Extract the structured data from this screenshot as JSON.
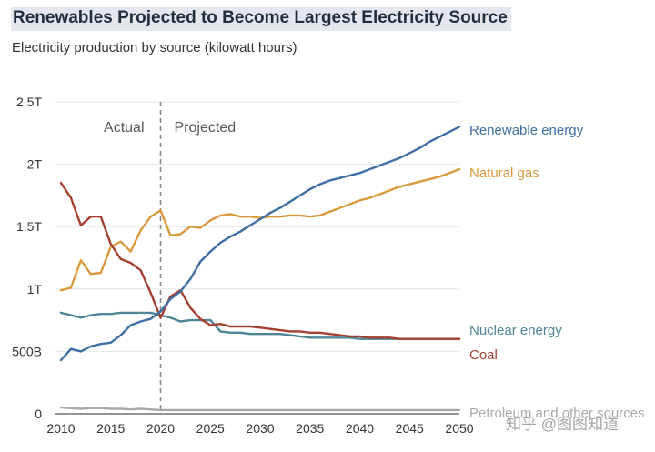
{
  "header": {
    "title": "Renewables Projected to Become Largest Electricity Source",
    "subtitle": "Electricity production by source (kilowatt hours)"
  },
  "watermark": "知乎 @图图知道",
  "chart_data": {
    "type": "line",
    "title": "Renewables Projected to Become Largest Electricity Source",
    "subtitle": "Electricity production by source (kilowatt hours)",
    "xlabel": "",
    "ylabel": "",
    "xlim": [
      2010,
      2050
    ],
    "ylim": [
      0,
      2.5
    ],
    "x_ticks": [
      2010,
      2015,
      2020,
      2025,
      2030,
      2035,
      2040,
      2045,
      2050
    ],
    "y_ticks": [
      0,
      0.5,
      1,
      1.5,
      2,
      2.5
    ],
    "y_tick_labels": [
      "0",
      "500B",
      "1T",
      "1.5T",
      "2T",
      "2.5T"
    ],
    "grid": "horizontal",
    "legend": "direct labels at right end of lines",
    "divider": {
      "x": 2020,
      "left_label": "Actual",
      "right_label": "Projected"
    },
    "series": [
      {
        "name": "Renewable energy",
        "color": "#3d6fa5",
        "x": [
          2010,
          2011,
          2012,
          2013,
          2014,
          2015,
          2016,
          2017,
          2018,
          2019,
          2020,
          2021,
          2022,
          2023,
          2024,
          2025,
          2026,
          2027,
          2028,
          2029,
          2030,
          2031,
          2032,
          2033,
          2034,
          2035,
          2036,
          2037,
          2038,
          2039,
          2040,
          2041,
          2042,
          2043,
          2044,
          2045,
          2046,
          2047,
          2048,
          2049,
          2050
        ],
        "values": [
          0.43,
          0.52,
          0.5,
          0.54,
          0.56,
          0.57,
          0.63,
          0.71,
          0.74,
          0.76,
          0.82,
          0.92,
          0.98,
          1.08,
          1.22,
          1.3,
          1.37,
          1.42,
          1.46,
          1.51,
          1.56,
          1.61,
          1.65,
          1.7,
          1.75,
          1.8,
          1.84,
          1.87,
          1.89,
          1.91,
          1.93,
          1.96,
          1.99,
          2.02,
          2.05,
          2.09,
          2.13,
          2.18,
          2.22,
          2.26,
          2.3
        ]
      },
      {
        "name": "Natural gas",
        "color": "#d99a3c",
        "x": [
          2010,
          2011,
          2012,
          2013,
          2014,
          2015,
          2016,
          2017,
          2018,
          2019,
          2020,
          2021,
          2022,
          2023,
          2024,
          2025,
          2026,
          2027,
          2028,
          2029,
          2030,
          2031,
          2032,
          2033,
          2034,
          2035,
          2036,
          2037,
          2038,
          2039,
          2040,
          2041,
          2042,
          2043,
          2044,
          2045,
          2046,
          2047,
          2048,
          2049,
          2050
        ],
        "values": [
          0.99,
          1.01,
          1.23,
          1.12,
          1.13,
          1.34,
          1.38,
          1.3,
          1.47,
          1.58,
          1.63,
          1.43,
          1.44,
          1.5,
          1.49,
          1.55,
          1.59,
          1.6,
          1.58,
          1.58,
          1.57,
          1.58,
          1.58,
          1.59,
          1.59,
          1.58,
          1.59,
          1.62,
          1.65,
          1.68,
          1.71,
          1.73,
          1.76,
          1.79,
          1.82,
          1.84,
          1.86,
          1.88,
          1.9,
          1.93,
          1.96
        ]
      },
      {
        "name": "Nuclear energy",
        "color": "#4f8598",
        "x": [
          2010,
          2011,
          2012,
          2013,
          2014,
          2015,
          2016,
          2017,
          2018,
          2019,
          2020,
          2021,
          2022,
          2023,
          2024,
          2025,
          2026,
          2027,
          2028,
          2029,
          2030,
          2031,
          2032,
          2033,
          2034,
          2035,
          2036,
          2037,
          2038,
          2039,
          2040,
          2041,
          2042,
          2043,
          2044,
          2045,
          2046,
          2047,
          2048,
          2049,
          2050
        ],
        "values": [
          0.81,
          0.79,
          0.77,
          0.79,
          0.8,
          0.8,
          0.81,
          0.81,
          0.81,
          0.81,
          0.79,
          0.77,
          0.74,
          0.75,
          0.75,
          0.75,
          0.66,
          0.65,
          0.65,
          0.64,
          0.64,
          0.64,
          0.64,
          0.63,
          0.62,
          0.61,
          0.61,
          0.61,
          0.61,
          0.61,
          0.6,
          0.6,
          0.6,
          0.6,
          0.6,
          0.6,
          0.6,
          0.6,
          0.6,
          0.6,
          0.6
        ]
      },
      {
        "name": "Coal",
        "color": "#a5402e",
        "x": [
          2010,
          2011,
          2012,
          2013,
          2014,
          2015,
          2016,
          2017,
          2018,
          2019,
          2020,
          2021,
          2022,
          2023,
          2024,
          2025,
          2026,
          2027,
          2028,
          2029,
          2030,
          2031,
          2032,
          2033,
          2034,
          2035,
          2036,
          2037,
          2038,
          2039,
          2040,
          2041,
          2042,
          2043,
          2044,
          2045,
          2046,
          2047,
          2048,
          2049,
          2050
        ],
        "values": [
          1.85,
          1.73,
          1.51,
          1.58,
          1.58,
          1.36,
          1.24,
          1.21,
          1.15,
          0.97,
          0.77,
          0.94,
          0.99,
          0.85,
          0.76,
          0.71,
          0.72,
          0.7,
          0.7,
          0.7,
          0.69,
          0.68,
          0.67,
          0.66,
          0.66,
          0.65,
          0.65,
          0.64,
          0.63,
          0.62,
          0.62,
          0.61,
          0.61,
          0.61,
          0.6,
          0.6,
          0.6,
          0.6,
          0.6,
          0.6,
          0.6
        ]
      },
      {
        "name": "Petroleum and other sources",
        "color": "#a9a9a9",
        "x": [
          2010,
          2011,
          2012,
          2013,
          2014,
          2015,
          2016,
          2017,
          2018,
          2019,
          2020,
          2021,
          2022,
          2023,
          2024,
          2025,
          2026,
          2027,
          2028,
          2029,
          2030,
          2031,
          2032,
          2033,
          2034,
          2035,
          2036,
          2037,
          2038,
          2039,
          2040,
          2041,
          2042,
          2043,
          2044,
          2045,
          2046,
          2047,
          2048,
          2049,
          2050
        ],
        "values": [
          0.05,
          0.045,
          0.04,
          0.045,
          0.045,
          0.04,
          0.04,
          0.035,
          0.04,
          0.035,
          0.03,
          0.03,
          0.03,
          0.03,
          0.03,
          0.03,
          0.03,
          0.03,
          0.03,
          0.03,
          0.03,
          0.03,
          0.03,
          0.03,
          0.03,
          0.03,
          0.03,
          0.03,
          0.03,
          0.03,
          0.03,
          0.03,
          0.03,
          0.03,
          0.03,
          0.03,
          0.03,
          0.03,
          0.03,
          0.03,
          0.03
        ]
      }
    ]
  }
}
